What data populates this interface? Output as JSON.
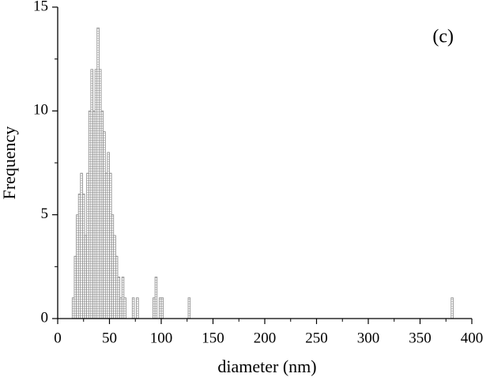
{
  "chart_data": {
    "type": "histogram",
    "xlabel": "diameter (nm)",
    "ylabel": "Frequency",
    "annotation": "(c)",
    "bins": [
      14,
      16,
      18,
      20,
      22,
      24,
      26,
      28,
      30,
      32,
      34,
      36,
      38,
      40,
      42,
      44,
      46,
      48,
      50,
      52,
      54,
      56,
      58,
      60,
      62,
      64,
      66,
      72,
      74,
      76,
      78,
      92,
      94,
      96,
      98,
      100,
      102,
      126,
      128,
      380,
      382
    ],
    "counts": [
      1,
      3,
      5,
      6,
      7,
      6,
      4,
      7,
      10,
      12,
      10,
      12,
      14,
      12,
      10,
      9,
      7,
      8,
      7,
      5,
      4,
      3,
      2,
      1,
      2,
      1,
      0,
      1,
      0,
      1,
      0,
      1,
      2,
      0,
      1,
      1,
      0,
      1,
      0,
      1
    ],
    "color": "#888888",
    "xlim": [
      0,
      400
    ],
    "xticks": [
      0,
      50,
      100,
      150,
      200,
      250,
      300,
      350,
      400
    ],
    "ylim": [
      0,
      15
    ],
    "yticks": [
      0,
      5,
      10,
      15
    ]
  }
}
